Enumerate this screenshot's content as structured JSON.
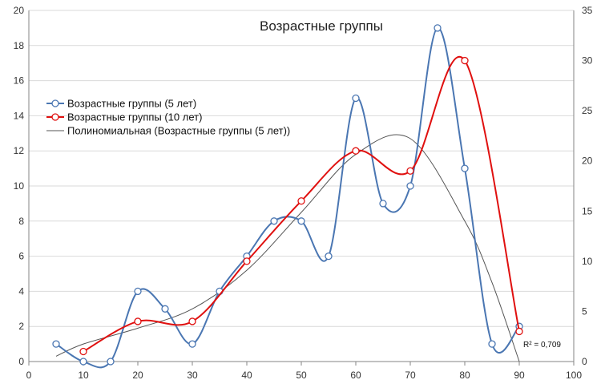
{
  "chart_data": {
    "type": "line",
    "title": "Возрастные группы",
    "x_axis": {
      "min": 0,
      "max": 100,
      "step": 10
    },
    "y_axis_left": {
      "min": 0,
      "max": 20,
      "step": 2
    },
    "y_axis_right": {
      "min": 0,
      "max": 35,
      "step": 5
    },
    "grid": "horizontal",
    "legend_position": "left",
    "series": [
      {
        "name": "Возрастные группы (5 лет)",
        "axis": "left",
        "color": "#4a76b2",
        "marker": "circle-open",
        "x": [
          5,
          10,
          15,
          20,
          25,
          30,
          35,
          40,
          45,
          50,
          55,
          60,
          65,
          70,
          75,
          80,
          85,
          90
        ],
        "y": [
          1,
          0,
          0,
          4,
          3,
          1,
          4,
          6,
          8,
          8,
          6,
          15,
          9,
          10,
          19,
          11,
          1,
          2
        ]
      },
      {
        "name": "Возрастные группы (10 лет)",
        "axis": "right",
        "color": "#e0100f",
        "marker": "circle-open",
        "x": [
          10,
          20,
          30,
          40,
          50,
          60,
          70,
          80,
          90
        ],
        "y": [
          1,
          4,
          4,
          10,
          16,
          21,
          19,
          30,
          3
        ]
      },
      {
        "name": "Полиномиальная (Возрастные группы (5 лет))",
        "axis": "left",
        "color": "#555555",
        "marker": "none",
        "trendline": true,
        "x": [
          5,
          10,
          20,
          30,
          40,
          50,
          60,
          70,
          80,
          85,
          90
        ],
        "y": [
          0.3,
          1.0,
          1.9,
          3.0,
          5.2,
          8.5,
          11.8,
          12.7,
          8.0,
          4.5,
          0.0
        ]
      }
    ],
    "annotations": [
      {
        "text": "R² = 0,709",
        "x": 90,
        "y": 0.6
      }
    ]
  }
}
